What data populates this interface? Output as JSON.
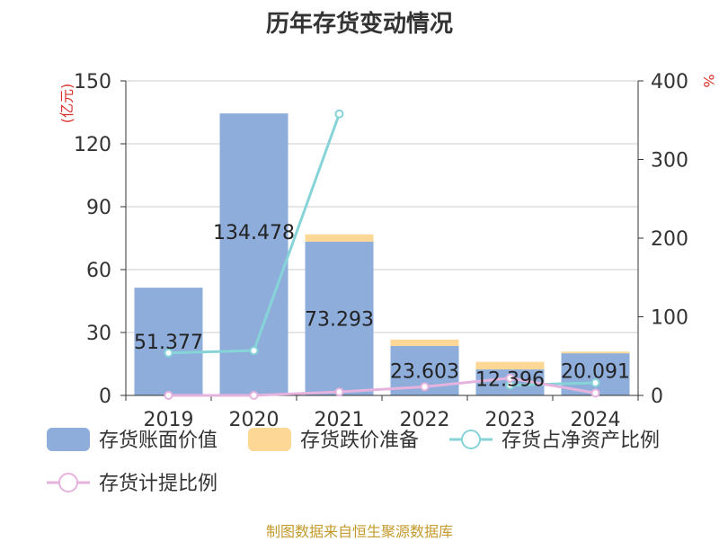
{
  "chart_data": {
    "type": "bar",
    "title": "历年存货变动情况",
    "categories": [
      "2019",
      "2020",
      "2021",
      "2022",
      "2023",
      "2024"
    ],
    "series": [
      {
        "name": "存货账面价值",
        "kind": "bar",
        "axis": "left",
        "color": "#8eaddb",
        "stack": "inv",
        "values": [
          51.377,
          134.478,
          73.293,
          23.603,
          12.396,
          20.091
        ]
      },
      {
        "name": "存货跌价准备",
        "kind": "bar",
        "axis": "left",
        "color": "#fcd796",
        "stack": "inv",
        "values": [
          0,
          0,
          3.5,
          3.0,
          3.6,
          0.8
        ]
      },
      {
        "name": "存货占净资产比例",
        "kind": "line",
        "axis": "right",
        "color": "#86d4d8",
        "values": [
          54,
          57,
          358,
          null,
          13,
          16
        ]
      },
      {
        "name": "存货计提比例",
        "kind": "line",
        "axis": "right",
        "color": "#e5b3de",
        "values": [
          0,
          0,
          4.5,
          11,
          22,
          3
        ]
      }
    ],
    "data_labels": [
      "51.377",
      "134.478",
      "73.293",
      "23.603",
      "12.396",
      "20.091"
    ],
    "y_left": {
      "label": "(亿元)",
      "min": 0,
      "max": 150,
      "ticks": [
        0,
        30,
        60,
        90,
        120,
        150
      ]
    },
    "y_right": {
      "label": "%",
      "min": 0,
      "max": 400,
      "ticks": [
        0,
        100,
        200,
        300,
        400
      ]
    },
    "grid": true,
    "legend_position": "bottom"
  },
  "footer": {
    "source": "制图数据来自恒生聚源数据库"
  }
}
